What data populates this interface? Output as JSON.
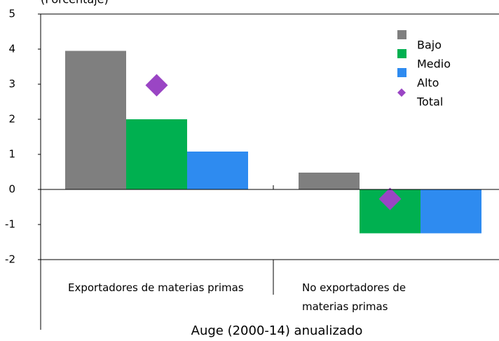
{
  "chart_data": {
    "type": "bar",
    "subtitle": "(Porcentaje)",
    "x_label": "Auge (2000-14) anualizado",
    "categories": [
      "Exportadores de materias primas",
      "No exportadores de materias primas"
    ],
    "series": [
      {
        "name": "Bajo",
        "color": "#7f7f7f",
        "values": [
          3.95,
          0.48
        ]
      },
      {
        "name": "Medio",
        "color": "#00b050",
        "values": [
          2.0,
          -1.25
        ]
      },
      {
        "name": "Alto",
        "color": "#2e8bf0",
        "values": [
          1.08,
          -1.25
        ]
      },
      {
        "name": "Total",
        "color": "#9a45c4",
        "marker": "diamond",
        "values": [
          2.97,
          -0.27
        ]
      }
    ],
    "ylim": [
      -2,
      5
    ],
    "yticks": [
      -2,
      -1,
      0,
      1,
      2,
      3,
      4,
      5
    ],
    "legend": "upper right"
  }
}
